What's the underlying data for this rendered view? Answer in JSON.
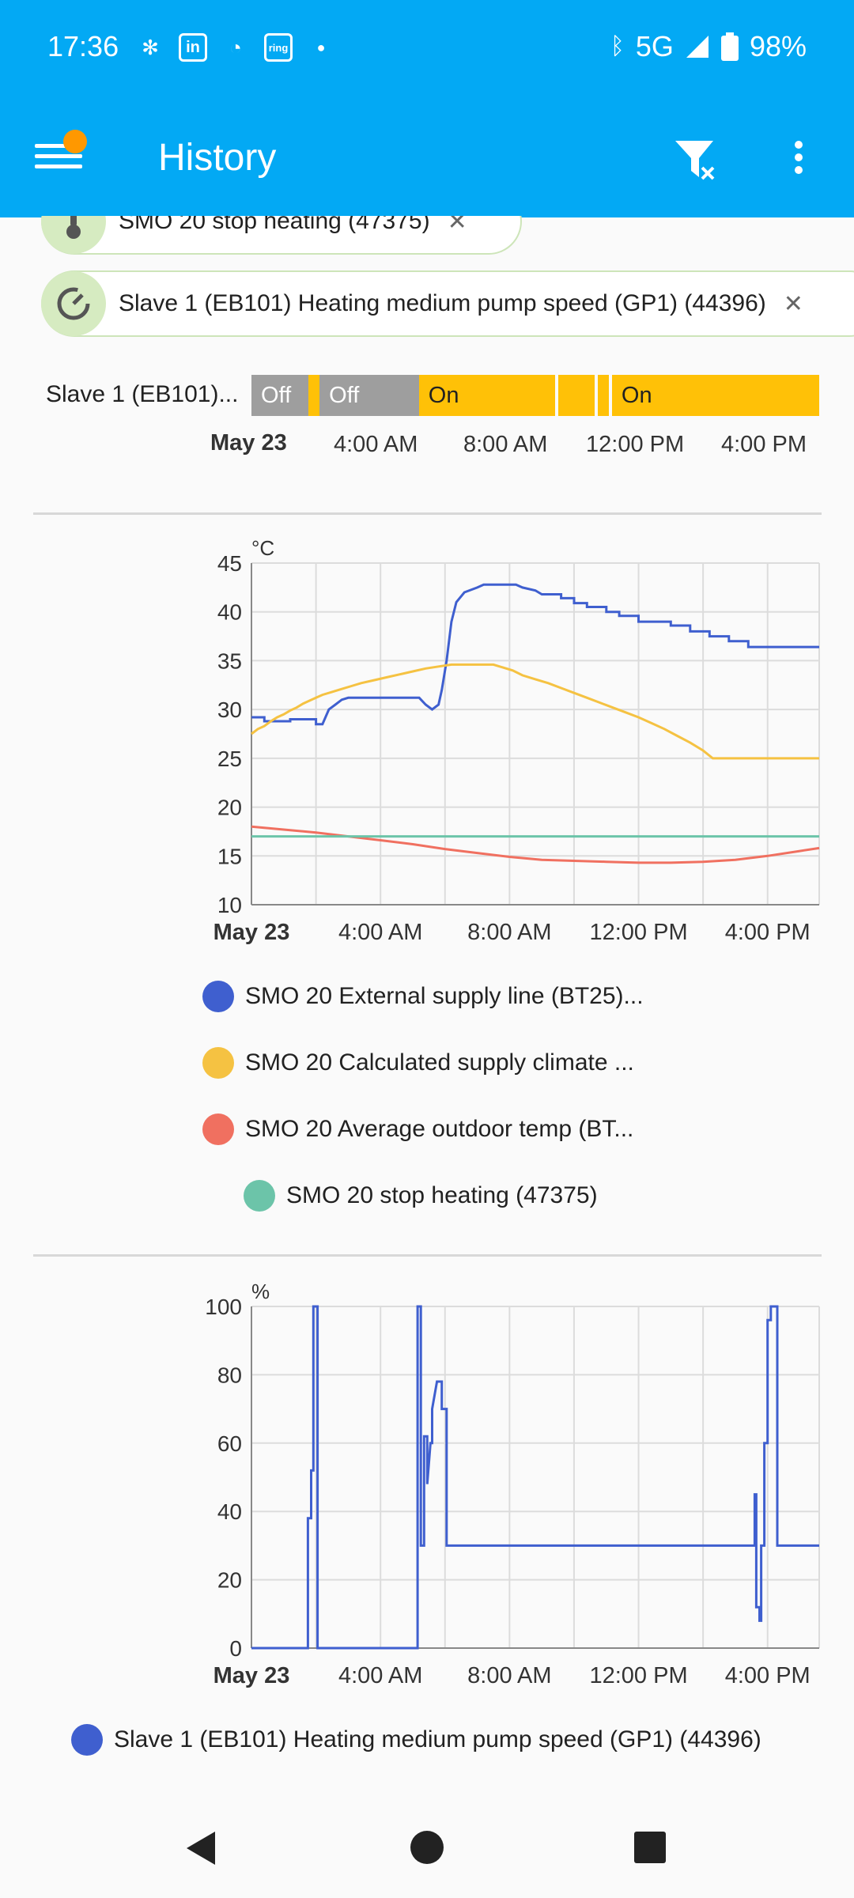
{
  "status_bar": {
    "time": "17:36",
    "app_icons": [
      "fan-icon",
      "linkedin-icon",
      "chat-icon",
      "ring-icon",
      "dot-icon"
    ],
    "network": "5G",
    "battery": "98%"
  },
  "app_bar": {
    "title": "History"
  },
  "chips": [
    {
      "label": "SMO 20 stop heating (47375)",
      "icon": "thermometer-icon"
    },
    {
      "label": "Slave 1 (EB101) Heating medium pump speed (GP1) (44396)",
      "icon": "gauge-icon"
    }
  ],
  "timeline": {
    "name": "Slave 1 (EB101)...",
    "segments": [
      {
        "label": "Off",
        "state": "off",
        "start": 0.0,
        "end": 0.1
      },
      {
        "label": "",
        "state": "on",
        "start": 0.1,
        "end": 0.12
      },
      {
        "label": "Off",
        "state": "off",
        "start": 0.12,
        "end": 0.295
      },
      {
        "label": "On",
        "state": "on",
        "start": 0.295,
        "end": 0.535
      },
      {
        "label": "",
        "state": "on",
        "start": 0.54,
        "end": 0.605
      },
      {
        "label": "",
        "state": "on",
        "start": 0.61,
        "end": 0.63
      },
      {
        "label": "On",
        "state": "on",
        "start": 0.635,
        "end": 1.0
      }
    ],
    "x_labels": [
      "May 23",
      "4:00 AM",
      "8:00 AM",
      "12:00 PM",
      "4:00 PM"
    ]
  },
  "chart_data": [
    {
      "type": "line",
      "ylabel": "°C",
      "ylim": [
        10,
        45
      ],
      "yticks": [
        45,
        40,
        35,
        30,
        25,
        20,
        15,
        10
      ],
      "xlim_hours": [
        0,
        17.6
      ],
      "x_labels": [
        "May 23",
        "4:00 AM",
        "8:00 AM",
        "12:00 PM",
        "4:00 PM"
      ],
      "grid": true,
      "series": [
        {
          "name": "SMO 20 External supply line (BT25)...",
          "color": "#3f5fcf",
          "points": [
            [
              0,
              29.2
            ],
            [
              0.4,
              29.2
            ],
            [
              0.4,
              28.8
            ],
            [
              1.2,
              28.8
            ],
            [
              1.2,
              29.0
            ],
            [
              2.0,
              29.0
            ],
            [
              2.0,
              28.5
            ],
            [
              2.2,
              28.5
            ],
            [
              2.4,
              30.0
            ],
            [
              2.6,
              30.5
            ],
            [
              2.8,
              31.0
            ],
            [
              3.0,
              31.2
            ],
            [
              5.2,
              31.2
            ],
            [
              5.4,
              30.5
            ],
            [
              5.6,
              30.0
            ],
            [
              5.8,
              30.5
            ],
            [
              5.9,
              32.0
            ],
            [
              6.05,
              35.0
            ],
            [
              6.2,
              39.0
            ],
            [
              6.35,
              41.0
            ],
            [
              6.6,
              42.0
            ],
            [
              7.0,
              42.5
            ],
            [
              7.2,
              42.8
            ],
            [
              8.2,
              42.8
            ],
            [
              8.4,
              42.5
            ],
            [
              8.8,
              42.2
            ],
            [
              9.0,
              41.8
            ],
            [
              9.6,
              41.8
            ],
            [
              9.6,
              41.4
            ],
            [
              10.0,
              41.4
            ],
            [
              10.0,
              40.9
            ],
            [
              10.4,
              40.9
            ],
            [
              10.4,
              40.5
            ],
            [
              11.0,
              40.5
            ],
            [
              11.0,
              40.0
            ],
            [
              11.4,
              40.0
            ],
            [
              11.4,
              39.6
            ],
            [
              12.0,
              39.6
            ],
            [
              12.0,
              39.0
            ],
            [
              13.0,
              39.0
            ],
            [
              13.0,
              38.6
            ],
            [
              13.6,
              38.6
            ],
            [
              13.6,
              38.0
            ],
            [
              14.2,
              38.0
            ],
            [
              14.2,
              37.5
            ],
            [
              14.8,
              37.5
            ],
            [
              14.8,
              37.0
            ],
            [
              15.4,
              37.0
            ],
            [
              15.4,
              36.4
            ],
            [
              17.6,
              36.4
            ]
          ]
        },
        {
          "name": "SMO 20 Calculated supply climate ...",
          "color": "#f5c242",
          "points": [
            [
              0,
              27.5
            ],
            [
              0.2,
              28.0
            ],
            [
              0.4,
              28.3
            ],
            [
              0.6,
              28.8
            ],
            [
              0.8,
              29.2
            ],
            [
              1.0,
              29.5
            ],
            [
              1.2,
              29.9
            ],
            [
              1.4,
              30.2
            ],
            [
              1.6,
              30.6
            ],
            [
              1.8,
              30.9
            ],
            [
              2.0,
              31.2
            ],
            [
              2.2,
              31.5
            ],
            [
              2.5,
              31.8
            ],
            [
              2.8,
              32.1
            ],
            [
              3.1,
              32.4
            ],
            [
              3.4,
              32.7
            ],
            [
              3.8,
              33.0
            ],
            [
              4.2,
              33.3
            ],
            [
              4.6,
              33.6
            ],
            [
              5.0,
              33.9
            ],
            [
              5.4,
              34.2
            ],
            [
              5.8,
              34.4
            ],
            [
              6.2,
              34.6
            ],
            [
              7.5,
              34.6
            ],
            [
              7.8,
              34.3
            ],
            [
              8.1,
              34.0
            ],
            [
              8.4,
              33.5
            ],
            [
              8.8,
              33.1
            ],
            [
              9.2,
              32.7
            ],
            [
              9.6,
              32.2
            ],
            [
              10.0,
              31.7
            ],
            [
              10.4,
              31.2
            ],
            [
              10.8,
              30.7
            ],
            [
              11.2,
              30.2
            ],
            [
              11.6,
              29.7
            ],
            [
              12.0,
              29.2
            ],
            [
              12.4,
              28.6
            ],
            [
              12.8,
              28.0
            ],
            [
              13.2,
              27.3
            ],
            [
              13.6,
              26.6
            ],
            [
              14.0,
              25.8
            ],
            [
              14.3,
              25.0
            ],
            [
              17.6,
              25.0
            ]
          ]
        },
        {
          "name": "SMO 20 Average outdoor temp (BT...",
          "color": "#f07060",
          "points": [
            [
              0,
              18.0
            ],
            [
              1.0,
              17.7
            ],
            [
              2.0,
              17.4
            ],
            [
              3.0,
              17.0
            ],
            [
              4.0,
              16.6
            ],
            [
              5.0,
              16.2
            ],
            [
              6.0,
              15.7
            ],
            [
              7.0,
              15.3
            ],
            [
              8.0,
              14.9
            ],
            [
              9.0,
              14.6
            ],
            [
              10.0,
              14.5
            ],
            [
              11.0,
              14.4
            ],
            [
              12.0,
              14.3
            ],
            [
              13.0,
              14.3
            ],
            [
              14.0,
              14.4
            ],
            [
              15.0,
              14.6
            ],
            [
              16.0,
              15.0
            ],
            [
              17.0,
              15.5
            ],
            [
              17.6,
              15.8
            ]
          ]
        },
        {
          "name": "SMO 20 stop heating (47375)",
          "color": "#6cc4a9",
          "points": [
            [
              0,
              17.0
            ],
            [
              17.6,
              17.0
            ]
          ]
        }
      ]
    },
    {
      "type": "line",
      "ylabel": "%",
      "ylim": [
        0,
        100
      ],
      "yticks": [
        100,
        80,
        60,
        40,
        20,
        0
      ],
      "xlim_hours": [
        0,
        17.6
      ],
      "x_labels": [
        "May 23",
        "4:00 AM",
        "8:00 AM",
        "12:00 PM",
        "4:00 PM"
      ],
      "grid": true,
      "series": [
        {
          "name": "Slave 1 (EB101) Heating medium pump speed (GP1) (44396)",
          "color": "#3f5fcf",
          "points": [
            [
              0,
              0
            ],
            [
              1.75,
              0
            ],
            [
              1.75,
              38
            ],
            [
              1.85,
              38
            ],
            [
              1.85,
              52
            ],
            [
              1.92,
              52
            ],
            [
              1.92,
              100
            ],
            [
              2.05,
              100
            ],
            [
              2.05,
              0
            ],
            [
              5.15,
              0
            ],
            [
              5.15,
              100
            ],
            [
              5.25,
              100
            ],
            [
              5.25,
              30
            ],
            [
              5.35,
              30
            ],
            [
              5.35,
              62
            ],
            [
              5.45,
              62
            ],
            [
              5.45,
              48
            ],
            [
              5.55,
              60
            ],
            [
              5.6,
              60
            ],
            [
              5.6,
              70
            ],
            [
              5.75,
              78
            ],
            [
              5.9,
              78
            ],
            [
              5.9,
              70
            ],
            [
              6.05,
              70
            ],
            [
              6.05,
              30
            ],
            [
              15.6,
              30
            ],
            [
              15.6,
              45
            ],
            [
              15.65,
              45
            ],
            [
              15.65,
              12
            ],
            [
              15.75,
              12
            ],
            [
              15.75,
              8
            ],
            [
              15.8,
              8
            ],
            [
              15.8,
              30
            ],
            [
              15.9,
              30
            ],
            [
              15.9,
              60
            ],
            [
              16.0,
              60
            ],
            [
              16.0,
              96
            ],
            [
              16.1,
              96
            ],
            [
              16.1,
              100
            ],
            [
              16.3,
              100
            ],
            [
              16.3,
              30
            ],
            [
              17.6,
              30
            ]
          ]
        }
      ]
    }
  ],
  "legend_chart_1": [
    {
      "label": "SMO 20 External supply line (BT25)...",
      "color": "#3f5fcf"
    },
    {
      "label": "SMO 20 Calculated supply climate ...",
      "color": "#f5c242"
    },
    {
      "label": "SMO 20 Average outdoor temp (BT...",
      "color": "#f07060"
    },
    {
      "label": "SMO 20 stop heating (47375)",
      "color": "#6cc4a9"
    }
  ],
  "legend_chart_2": [
    {
      "label": "Slave 1 (EB101) Heating medium pump speed (GP1) (44396)",
      "color": "#3f5fcf"
    }
  ],
  "nav_bar": {
    "back": "back-icon",
    "home": "home-icon",
    "recents": "recents-icon"
  }
}
